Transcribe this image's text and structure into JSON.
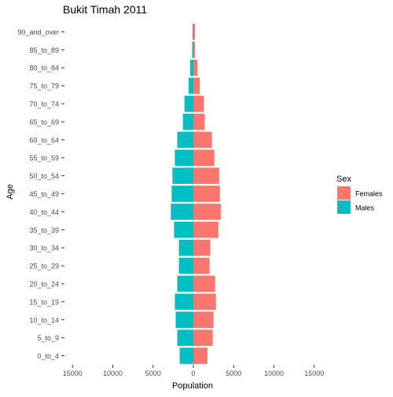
{
  "chart_data": {
    "type": "bar",
    "orientation": "horizontal-diverging",
    "title": "Bukit Timah  2011",
    "xlabel": "Population",
    "ylabel": "Age",
    "xlim": [
      -16000,
      16000
    ],
    "xticks": [
      -15000,
      -10000,
      -5000,
      0,
      5000,
      10000,
      15000
    ],
    "xtick_labels": [
      "15000",
      "10000",
      "5000",
      "0",
      "5000",
      "10000",
      "15000"
    ],
    "grid": false,
    "legend_position": "right",
    "legend_title": "Sex",
    "categories": [
      "0_to_4",
      "5_to_9",
      "10_to_14",
      "15_to_19",
      "20_to_24",
      "25_to_29",
      "30_to_34",
      "35_to_39",
      "40_to_44",
      "45_to_49",
      "50_to_54",
      "55_to_59",
      "60_to_64",
      "65_to_69",
      "70_to_74",
      "75_to_79",
      "80_to_84",
      "85_to_89",
      "90_and_over"
    ],
    "series": [
      {
        "name": "Females",
        "color": "#F8766D",
        "values": [
          1750,
          2400,
          2500,
          2800,
          2700,
          2000,
          2100,
          3100,
          3400,
          3300,
          3200,
          2600,
          2300,
          1400,
          1300,
          800,
          500,
          200,
          200
        ]
      },
      {
        "name": "Males",
        "color": "#00BFC4",
        "values": [
          1700,
          2000,
          2200,
          2300,
          2000,
          1800,
          1800,
          2400,
          2800,
          2700,
          2600,
          2300,
          2000,
          1300,
          1100,
          600,
          400,
          150,
          100
        ]
      }
    ]
  }
}
